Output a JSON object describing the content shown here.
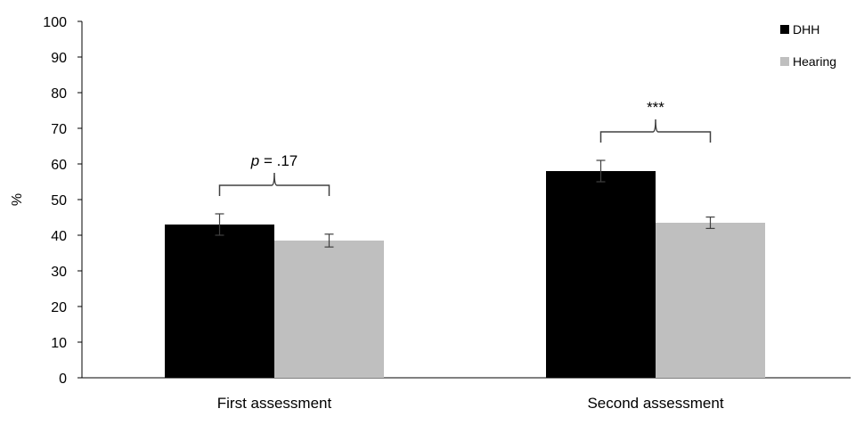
{
  "chart_data": {
    "type": "bar",
    "categories": [
      "First assessment",
      "Second assessment"
    ],
    "series": [
      {
        "name": "DHH",
        "values": [
          43,
          58
        ],
        "errors": [
          3,
          3
        ],
        "color": "#000000"
      },
      {
        "name": "Hearing",
        "values": [
          38.5,
          43.5
        ],
        "errors": [
          1.8,
          1.6
        ],
        "color": "#bfbfbf"
      }
    ],
    "ylabel": "%",
    "xlabel": "",
    "title": "",
    "ylim": [
      0,
      100
    ],
    "yticks": [
      0,
      10,
      20,
      30,
      40,
      50,
      60,
      70,
      80,
      90,
      100
    ],
    "legend_position": "top-right",
    "grid": false,
    "annotations": [
      {
        "category_index": 0,
        "text_italic": "p",
        "text": " = .17"
      },
      {
        "category_index": 1,
        "text_italic": "",
        "text": "***"
      }
    ]
  }
}
